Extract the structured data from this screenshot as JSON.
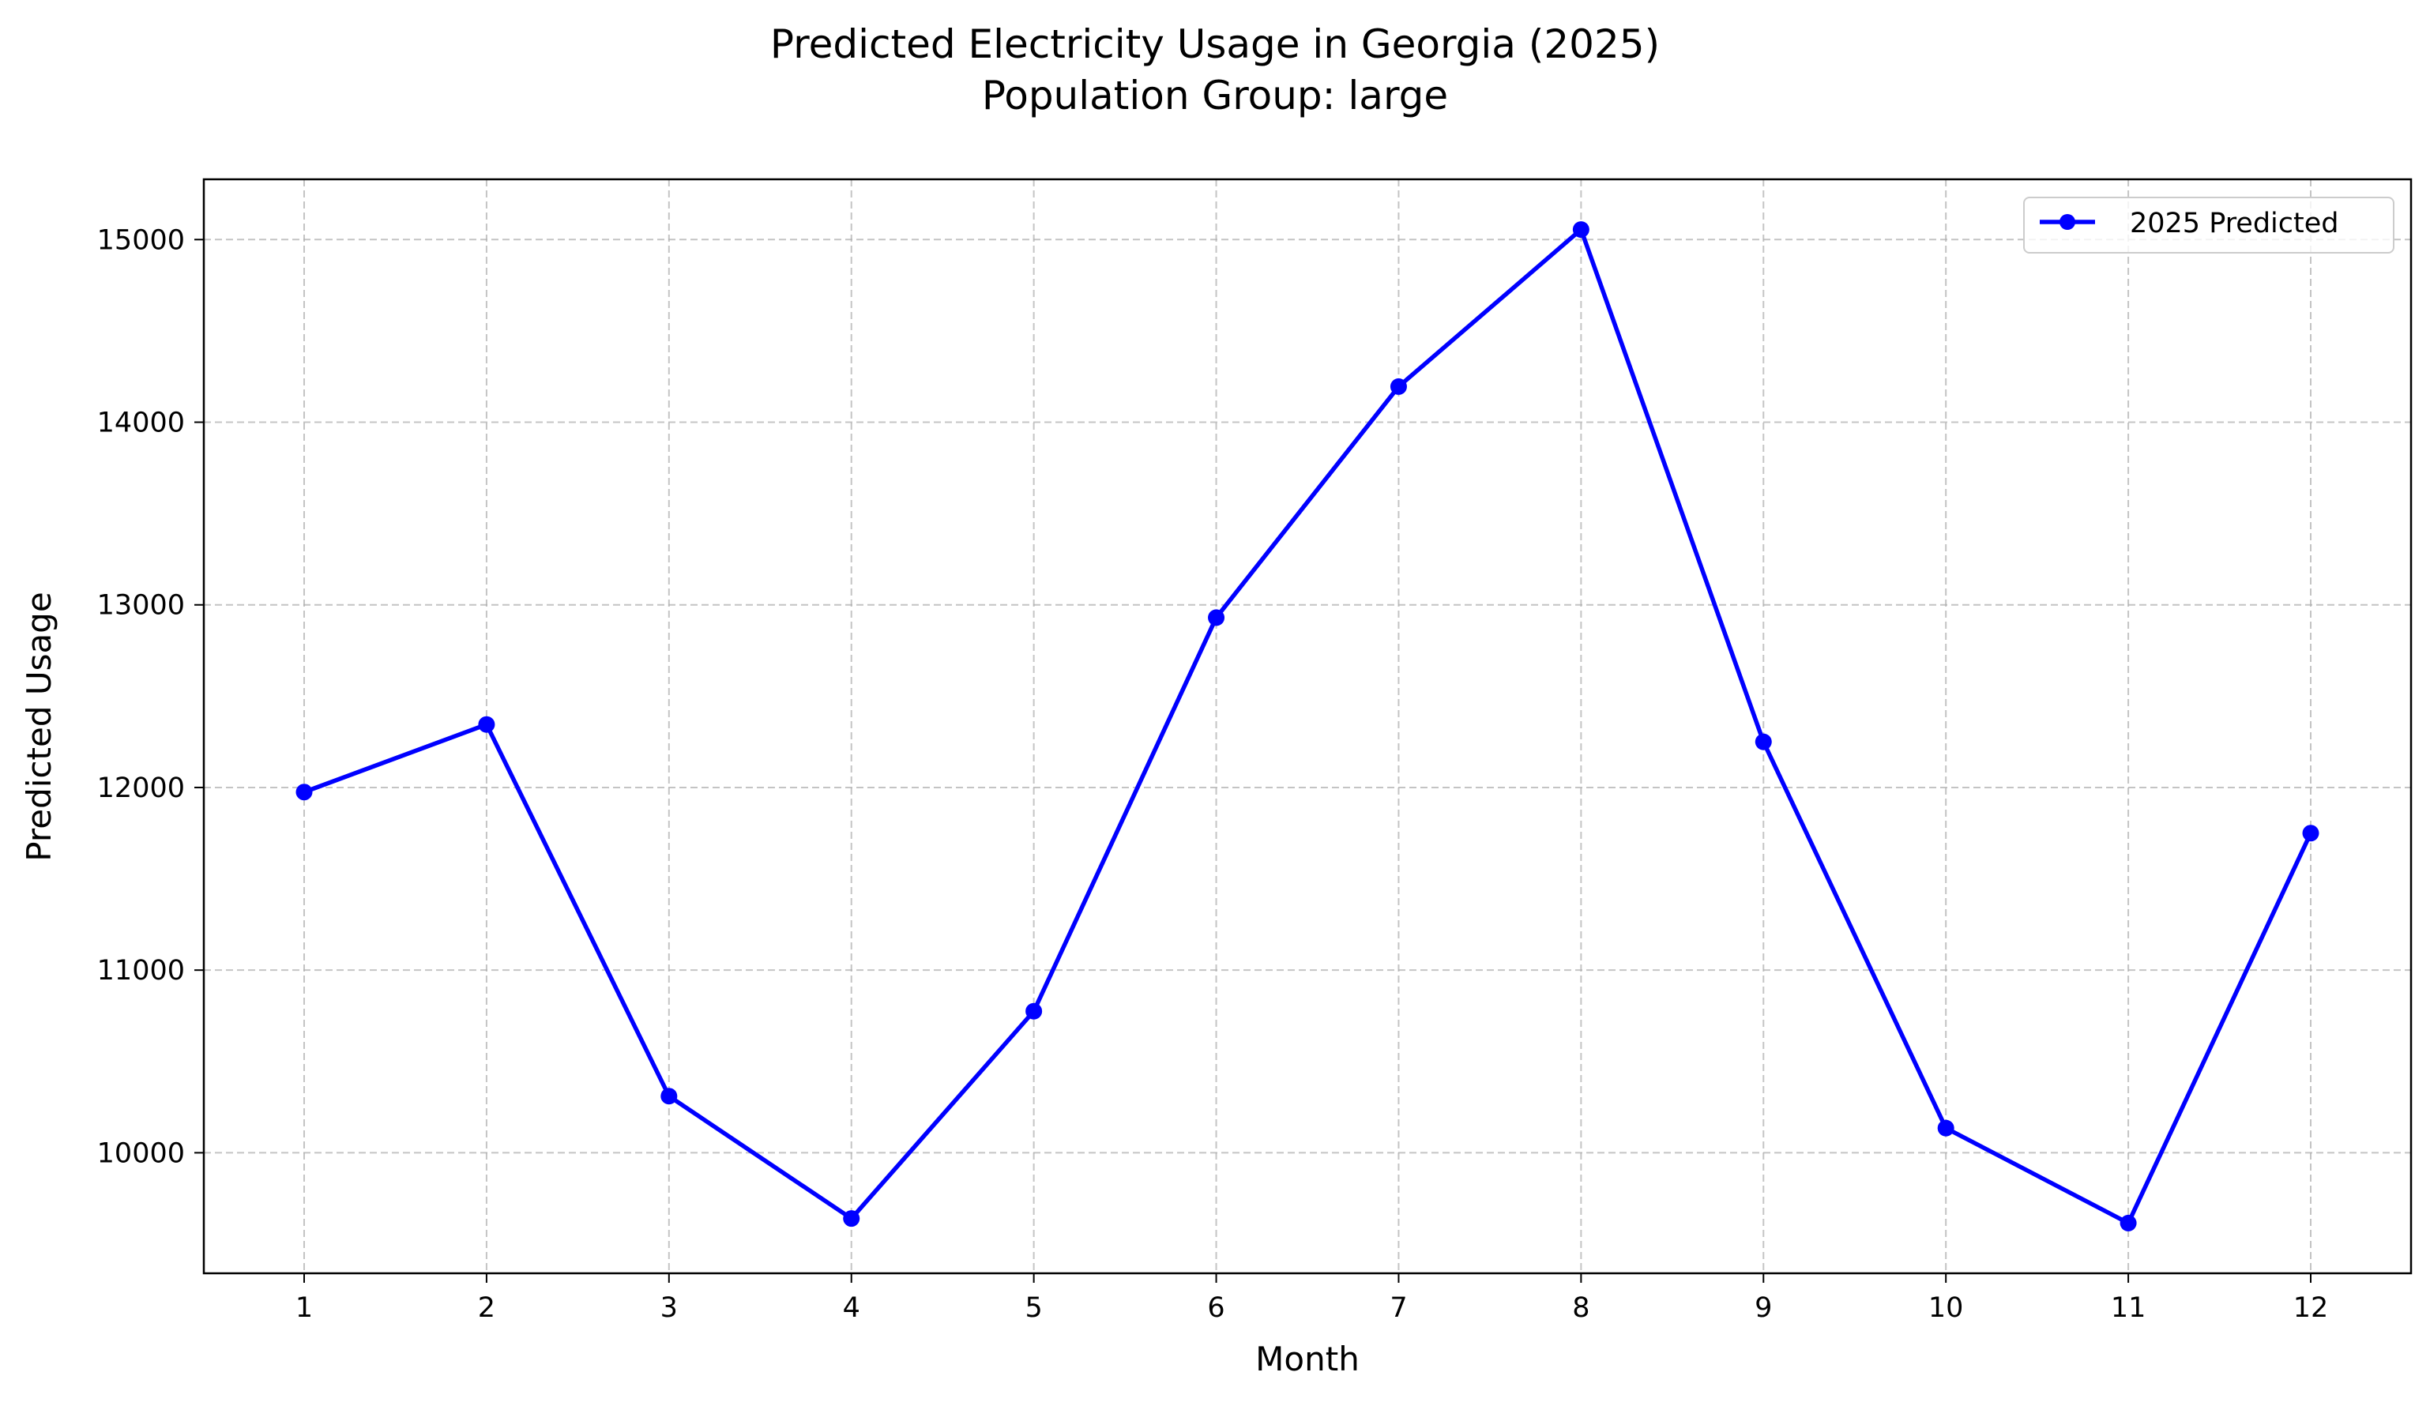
{
  "chart_data": {
    "type": "line",
    "title": "Predicted Electricity Usage in Georgia (2025)",
    "subtitle": "Population Group: large",
    "xlabel": "Month",
    "ylabel": "Predicted Usage",
    "x": [
      1,
      2,
      3,
      4,
      5,
      6,
      7,
      8,
      9,
      10,
      11,
      12
    ],
    "x_tick_labels": [
      "1",
      "2",
      "3",
      "4",
      "5",
      "6",
      "7",
      "8",
      "9",
      "10",
      "11",
      "12"
    ],
    "y_ticks": [
      10000,
      11000,
      12000,
      13000,
      14000,
      15000
    ],
    "y_tick_labels": [
      "10000",
      "11000",
      "12000",
      "13000",
      "14000",
      "15000"
    ],
    "xlim": [
      0.45,
      12.55
    ],
    "ylim": [
      9340,
      15330
    ],
    "grid": true,
    "legend_position": "top-right",
    "series": [
      {
        "name": "2025 Predicted",
        "color": "#0000ff",
        "marker": "circle",
        "values": [
          11975,
          12345,
          10310,
          9640,
          10775,
          12930,
          14195,
          15055,
          12250,
          10135,
          9615,
          11750
        ]
      }
    ]
  }
}
